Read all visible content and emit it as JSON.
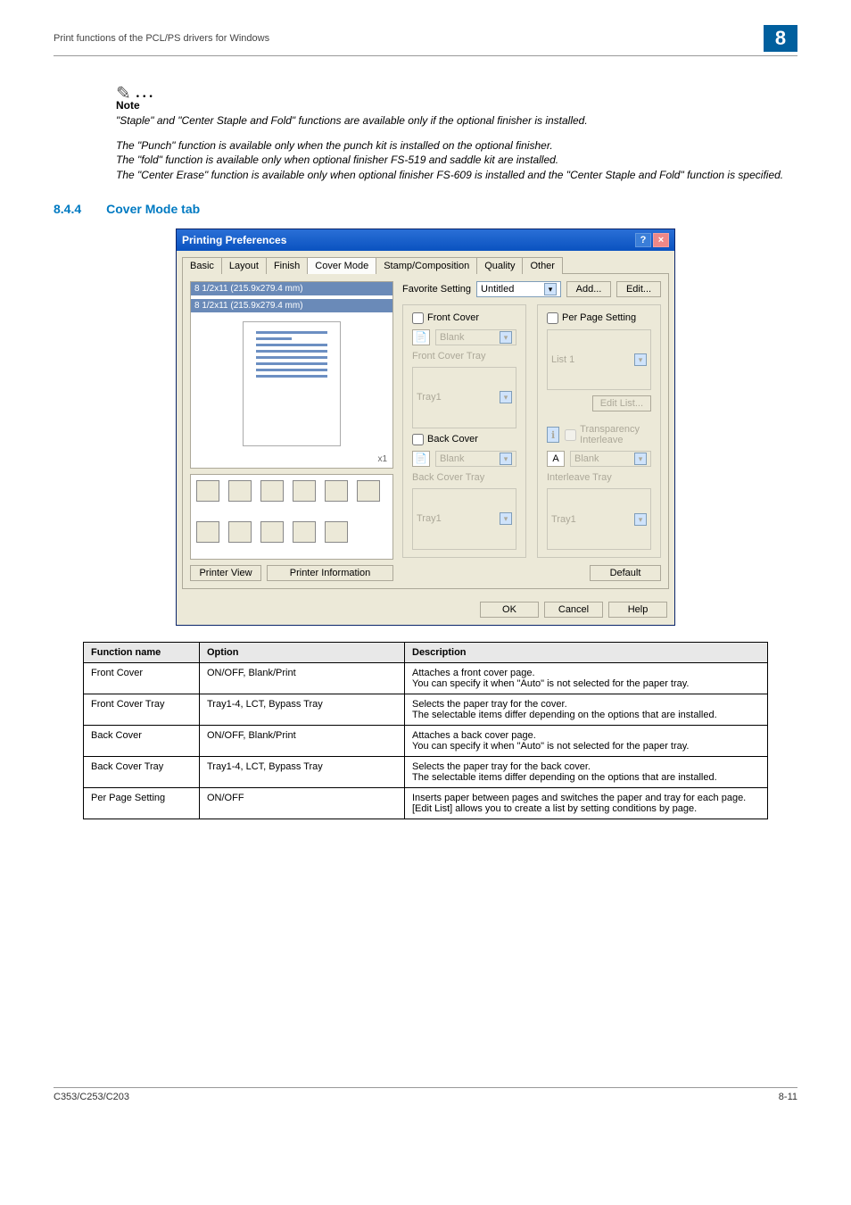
{
  "header": {
    "title": "Print functions of the PCL/PS drivers for Windows",
    "chapter": "8"
  },
  "note": {
    "dots": "✎ …",
    "label": "Note",
    "p1": "\"Staple\" and \"Center Staple and Fold\" functions are available only if the optional finisher is installed.",
    "p2": "The \"Punch\" function is available only when the punch kit is installed on the optional finisher.\nThe \"fold\" function is available only when optional finisher FS-519 and saddle kit are installed.\nThe \"Center Erase\" function is available only when optional finisher FS-609 is installed and the \"Center Staple and Fold\" function is specified."
  },
  "section": {
    "num": "8.4.4",
    "title": "Cover Mode tab"
  },
  "dialog": {
    "title": "Printing Preferences",
    "tabs": [
      "Basic",
      "Layout",
      "Finish",
      "Cover Mode",
      "Stamp/Composition",
      "Quality",
      "Other"
    ],
    "active_tab": "Cover Mode",
    "preview_label1": "8 1/2x11 (215.9x279.4 mm)",
    "preview_label2": "8 1/2x11 (215.9x279.4 mm)",
    "printer_view": "Printer View",
    "printer_info": "Printer Information",
    "favorite_label": "Favorite Setting",
    "favorite_value": "Untitled",
    "add_btn": "Add...",
    "edit_btn": "Edit...",
    "left_group": {
      "front_cover": "Front Cover",
      "front_blank": "Blank",
      "front_cover_tray_lbl": "Front Cover Tray",
      "front_cover_tray_val": "Tray1",
      "back_cover": "Back Cover",
      "back_blank": "Blank",
      "back_cover_tray_lbl": "Back Cover Tray",
      "back_cover_tray_val": "Tray1"
    },
    "right_group": {
      "per_page": "Per Page Setting",
      "list1": "List 1",
      "edit_list": "Edit List...",
      "trans_inter": "Transparency Interleave",
      "blank": "Blank",
      "interleave_tray_lbl": "Interleave Tray",
      "interleave_tray_val": "Tray1"
    },
    "default_btn": "Default",
    "ok": "OK",
    "cancel": "Cancel",
    "help": "Help"
  },
  "table": {
    "columns": [
      "Function name",
      "Option",
      "Description"
    ],
    "rows": [
      [
        "Front Cover",
        "ON/OFF, Blank/Print",
        "Attaches a front cover page.\nYou can specify it when \"Auto\" is not selected for the paper tray."
      ],
      [
        "Front Cover Tray",
        "Tray1-4, LCT, Bypass Tray",
        "Selects the paper tray for the cover.\nThe selectable items differ depending on the options that are installed."
      ],
      [
        "Back Cover",
        "ON/OFF, Blank/Print",
        "Attaches a back cover page.\nYou can specify it when \"Auto\" is not selected for the paper tray."
      ],
      [
        "Back Cover Tray",
        "Tray1-4, LCT, Bypass Tray",
        "Selects the paper tray for the back cover.\nThe selectable items differ depending on the options that are installed."
      ],
      [
        "Per Page Setting",
        "ON/OFF",
        "Inserts paper between pages and switches the paper and tray for each page. [Edit List] allows you to create a list by setting conditions by page."
      ]
    ]
  },
  "footer": {
    "left": "C353/C253/C203",
    "right": "8-11"
  }
}
